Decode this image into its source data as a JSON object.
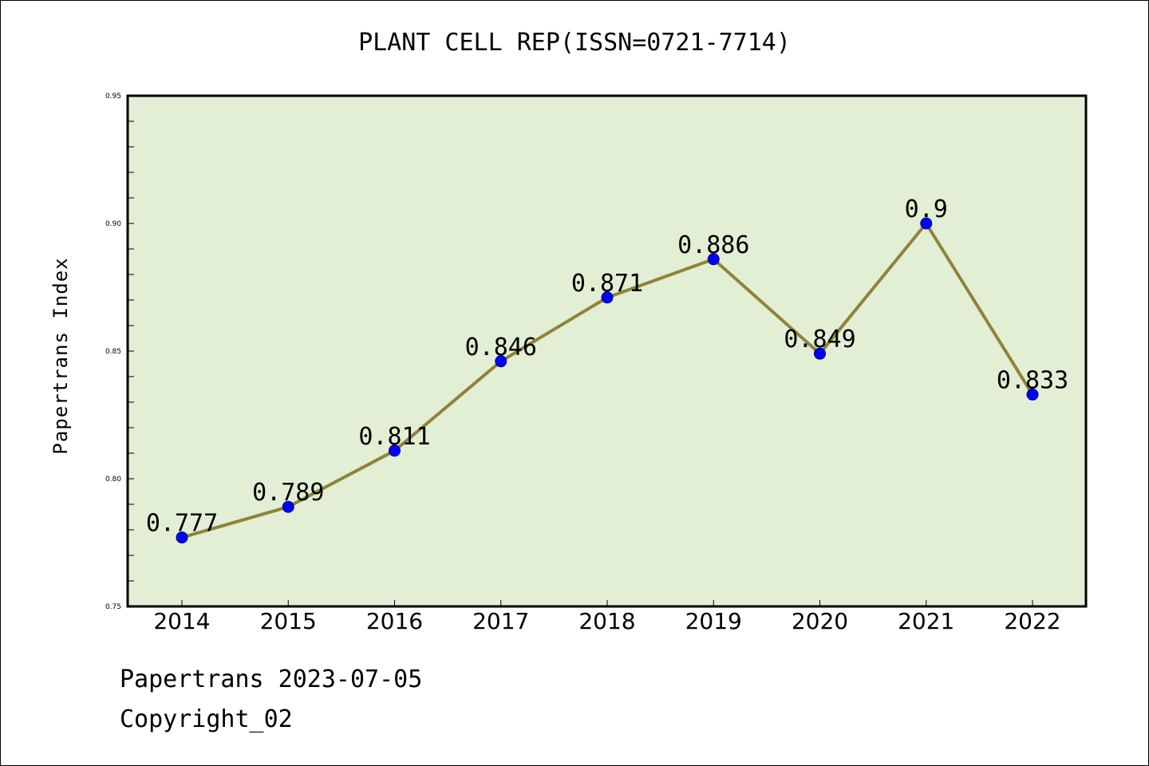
{
  "chart_data": {
    "type": "line",
    "title": "PLANT CELL REP(ISSN=0721-7714)",
    "xlabel": "",
    "ylabel": "Papertrans Index",
    "categories": [
      "2014",
      "2015",
      "2016",
      "2017",
      "2018",
      "2019",
      "2020",
      "2021",
      "2022"
    ],
    "series": [
      {
        "values": [
          0.777,
          0.789,
          0.811,
          0.846,
          0.871,
          0.886,
          0.849,
          0.9,
          0.833
        ],
        "labels": [
          "0.777",
          "0.789",
          "0.811",
          "0.846",
          "0.871",
          "0.886",
          "0.849",
          "0.9",
          "0.833"
        ]
      }
    ],
    "ylim": [
      0.75,
      0.95
    ],
    "yticks": [
      "0.75",
      "0.80",
      "0.85",
      "0.90",
      "0.95"
    ],
    "grid": false,
    "legend": "none",
    "colors": {
      "plot_background": "#e2efd4",
      "line": "#8f833a",
      "marker": "#0000ff"
    }
  },
  "footer": {
    "date_line": "Papertrans 2023-07-05",
    "copyright": "Copyright_02"
  }
}
